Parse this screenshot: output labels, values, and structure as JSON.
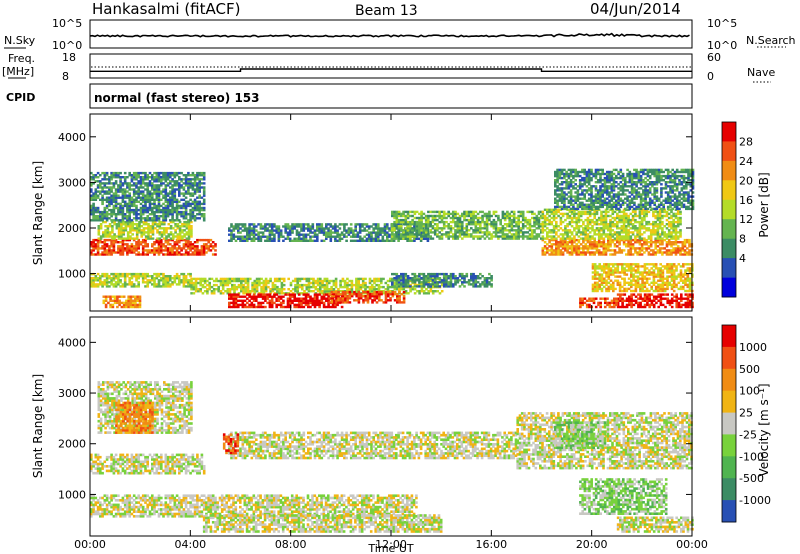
{
  "header": {
    "station": "Hankasalmi (fitACF)",
    "beam": "Beam 13",
    "date": "04/Jun/2014"
  },
  "noise_panel": {
    "left_label": "N.Sky",
    "right_label": "N.Search",
    "left_ticks": [
      "10^5",
      "10^0"
    ],
    "right_ticks": [
      "10^5",
      "10^0"
    ]
  },
  "freq_panel": {
    "left_label_1": "Freq.",
    "left_label_2": "[MHz]",
    "right_label": "Nave",
    "left_ticks": [
      "18",
      "8"
    ],
    "right_ticks": [
      "60",
      "0"
    ],
    "nave_low": 10,
    "nave_high": 14,
    "nave_steps": [
      [
        0.0,
        10
      ],
      [
        6.0,
        14
      ],
      [
        18.0,
        10
      ],
      [
        24.0,
        10
      ]
    ]
  },
  "cpid": {
    "label": "CPID",
    "text": "normal (fast stereo) 153"
  },
  "chart_data": [
    {
      "type": "heatmap",
      "name": "power",
      "ylabel": "Slant Range [km]",
      "yticks": [
        "4000",
        "3000",
        "2000",
        "1000"
      ],
      "ylim": [
        180,
        4500
      ],
      "colorbar_label": "Power [dB]",
      "colorbar_ticks": [
        "28",
        "24",
        "20",
        "16",
        "12",
        "8",
        "4"
      ],
      "colors": [
        "#0000dc",
        "#2850b4",
        "#3c8c64",
        "#64b450",
        "#b4dc28",
        "#f0c814",
        "#f08c14",
        "#f05014",
        "#e60000"
      ],
      "bands": [
        {
          "t0": 0.0,
          "t1": 5.0,
          "r0": 1400,
          "r1": 1750,
          "level": 7
        },
        {
          "t0": 0.3,
          "t1": 4.0,
          "r0": 1750,
          "r1": 2150,
          "level": 4
        },
        {
          "t0": 0.0,
          "t1": 4.5,
          "r0": 2150,
          "r1": 3200,
          "level": 2
        },
        {
          "t0": 5.5,
          "t1": 13.5,
          "r0": 1700,
          "r1": 2100,
          "level": 2
        },
        {
          "t0": 0.0,
          "t1": 4.0,
          "r0": 700,
          "r1": 1000,
          "level": 4
        },
        {
          "t0": 4.0,
          "t1": 14.0,
          "r0": 550,
          "r1": 900,
          "level": 4
        },
        {
          "t0": 5.5,
          "t1": 10.0,
          "r0": 250,
          "r1": 550,
          "level": 8
        },
        {
          "t0": 9.5,
          "t1": 12.5,
          "r0": 350,
          "r1": 600,
          "level": 7
        },
        {
          "t0": 0.5,
          "t1": 2.0,
          "r0": 250,
          "r1": 500,
          "level": 6
        },
        {
          "t0": 12.0,
          "t1": 18.0,
          "r0": 1750,
          "r1": 2350,
          "level": 3
        },
        {
          "t0": 12.0,
          "t1": 16.0,
          "r0": 700,
          "r1": 1000,
          "level": 2
        },
        {
          "t0": 18.0,
          "t1": 24.0,
          "r0": 1400,
          "r1": 1750,
          "level": 6
        },
        {
          "t0": 18.0,
          "t1": 23.5,
          "r0": 1750,
          "r1": 2400,
          "level": 4
        },
        {
          "t0": 18.5,
          "t1": 24.0,
          "r0": 2400,
          "r1": 3300,
          "level": 2
        },
        {
          "t0": 20.0,
          "t1": 24.0,
          "r0": 600,
          "r1": 1200,
          "level": 5
        },
        {
          "t0": 21.0,
          "t1": 24.0,
          "r0": 250,
          "r1": 550,
          "level": 8
        },
        {
          "t0": 19.5,
          "t1": 21.0,
          "r0": 250,
          "r1": 450,
          "level": 7
        }
      ]
    },
    {
      "type": "heatmap",
      "name": "velocity",
      "ylabel": "Slant Range [km]",
      "yticks": [
        "4000",
        "3000",
        "2000",
        "1000"
      ],
      "ylim": [
        180,
        4500
      ],
      "xlabel": "Time UT",
      "xticks": [
        "00:00",
        "04:00",
        "08:00",
        "12:00",
        "16:00",
        "20:00",
        "00:00"
      ],
      "xlim": [
        0,
        24
      ],
      "colorbar_label": "Velocity [m s⁻¹]",
      "colorbar_ticks": [
        "1000",
        "500",
        "100",
        "25",
        "-25",
        "-100",
        "-500",
        "-1000"
      ],
      "colors": [
        "#2850b4",
        "#3c8c64",
        "#50b450",
        "#78d23c",
        "#c8c8c3",
        "#f0b414",
        "#f08c14",
        "#f05014",
        "#e60000"
      ],
      "bands": [
        {
          "t0": 0.0,
          "t1": 4.5,
          "r0": 1400,
          "r1": 1800,
          "level": 4
        },
        {
          "t0": 0.0,
          "t1": 13.0,
          "r0": 550,
          "r1": 1000,
          "level": 4
        },
        {
          "t0": 4.5,
          "t1": 14.0,
          "r0": 250,
          "r1": 600,
          "level": 4
        },
        {
          "t0": 5.5,
          "t1": 17.0,
          "r0": 1700,
          "r1": 2200,
          "level": 4
        },
        {
          "t0": 0.3,
          "t1": 4.0,
          "r0": 2200,
          "r1": 3200,
          "level": 4
        },
        {
          "t0": 17.0,
          "t1": 24.0,
          "r0": 1500,
          "r1": 2600,
          "level": 4
        },
        {
          "t0": 19.5,
          "t1": 23.0,
          "r0": 600,
          "r1": 1300,
          "level": 3
        },
        {
          "t0": 21.0,
          "t1": 24.0,
          "r0": 250,
          "r1": 550,
          "level": 4
        },
        {
          "t0": 18.5,
          "t1": 20.5,
          "r0": 1900,
          "r1": 2400,
          "level": 3
        },
        {
          "t0": 1.0,
          "t1": 2.5,
          "r0": 2200,
          "r1": 2800,
          "level": 6
        },
        {
          "t0": 5.3,
          "t1": 5.9,
          "r0": 1800,
          "r1": 2200,
          "level": 7
        }
      ]
    }
  ]
}
